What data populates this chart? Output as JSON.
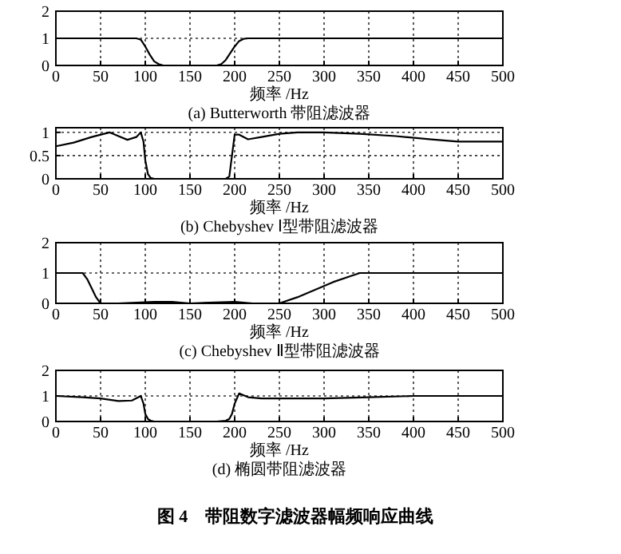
{
  "chart_data": [
    {
      "type": "line",
      "xlabel": "频率 /Hz",
      "title": "(a) Butterworth 带阻滤波器",
      "xlim": [
        0,
        500
      ],
      "xticks": [
        0,
        50,
        100,
        150,
        200,
        250,
        300,
        350,
        400,
        450,
        500
      ],
      "ylim": [
        0,
        2
      ],
      "yticks": [
        0,
        1,
        2
      ],
      "grid": true,
      "series": [
        {
          "color": "#000000",
          "x": [
            0,
            50,
            90,
            95,
            100,
            105,
            110,
            115,
            120,
            150,
            180,
            185,
            190,
            195,
            200,
            205,
            210,
            215,
            250,
            300,
            400,
            500
          ],
          "values": [
            1,
            1,
            1,
            0.95,
            0.7,
            0.4,
            0.15,
            0.05,
            0,
            0,
            0,
            0.05,
            0.2,
            0.45,
            0.7,
            0.9,
            0.98,
            1,
            1,
            1,
            1,
            1
          ]
        }
      ]
    },
    {
      "type": "line",
      "xlabel": "频率 /Hz",
      "title": "(b) Chebyshev Ⅰ型带阻滤波器",
      "xlim": [
        0,
        500
      ],
      "xticks": [
        0,
        50,
        100,
        150,
        200,
        250,
        300,
        350,
        400,
        450,
        500
      ],
      "ylim": [
        0,
        1.1
      ],
      "yticks": [
        0,
        0.5,
        1
      ],
      "grid": true,
      "series": [
        {
          "color": "#000000",
          "x": [
            0,
            20,
            40,
            60,
            70,
            80,
            90,
            95,
            98,
            100,
            103,
            106,
            110,
            150,
            190,
            194,
            197,
            200,
            205,
            215,
            230,
            250,
            270,
            300,
            340,
            380,
            420,
            450,
            500
          ],
          "values": [
            0.7,
            0.78,
            0.9,
            1,
            0.92,
            0.84,
            0.9,
            1,
            0.8,
            0.4,
            0.1,
            0.02,
            0,
            0,
            0,
            0.05,
            0.5,
            0.95,
            0.95,
            0.85,
            0.9,
            0.97,
            1,
            1,
            0.97,
            0.92,
            0.85,
            0.8,
            0.8
          ]
        }
      ]
    },
    {
      "type": "line",
      "xlabel": "频率 /Hz",
      "title": "(c) Chebyshev Ⅱ型带阻滤波器",
      "xlim": [
        0,
        500
      ],
      "xticks": [
        0,
        50,
        100,
        150,
        200,
        250,
        300,
        350,
        400,
        450,
        500
      ],
      "ylim": [
        0,
        2
      ],
      "yticks": [
        0,
        1,
        2
      ],
      "grid": true,
      "series": [
        {
          "color": "#000000",
          "x": [
            0,
            30,
            35,
            40,
            45,
            50,
            70,
            110,
            130,
            150,
            200,
            220,
            250,
            270,
            290,
            310,
            330,
            340,
            350,
            400,
            450,
            500
          ],
          "values": [
            1,
            1,
            0.8,
            0.5,
            0.2,
            0,
            0,
            0.05,
            0.05,
            0,
            0.05,
            0,
            0,
            0.2,
            0.45,
            0.7,
            0.9,
            1,
            1,
            1,
            1,
            1
          ]
        }
      ]
    },
    {
      "type": "line",
      "xlabel": "频率 /Hz",
      "title": "(d) 椭圆带阻滤波器",
      "xlim": [
        0,
        500
      ],
      "xticks": [
        0,
        50,
        100,
        150,
        200,
        250,
        300,
        350,
        400,
        450,
        500
      ],
      "ylim": [
        0,
        2
      ],
      "yticks": [
        0,
        1,
        2
      ],
      "grid": true,
      "annotations": [
        "图 4　带阻数字滤波器幅频响应曲线"
      ],
      "series": [
        {
          "color": "#000000",
          "x": [
            0,
            30,
            50,
            70,
            85,
            95,
            98,
            100,
            103,
            106,
            110,
            120,
            150,
            180,
            190,
            194,
            197,
            200,
            205,
            215,
            230,
            260,
            300,
            350,
            400,
            450,
            500
          ],
          "values": [
            1,
            0.95,
            0.9,
            0.8,
            0.82,
            1,
            0.7,
            0.3,
            0.1,
            0.03,
            0,
            0,
            0,
            0,
            0.03,
            0.1,
            0.3,
            0.7,
            1.1,
            0.95,
            0.9,
            0.9,
            0.9,
            0.95,
            1,
            1,
            1
          ]
        }
      ]
    }
  ]
}
